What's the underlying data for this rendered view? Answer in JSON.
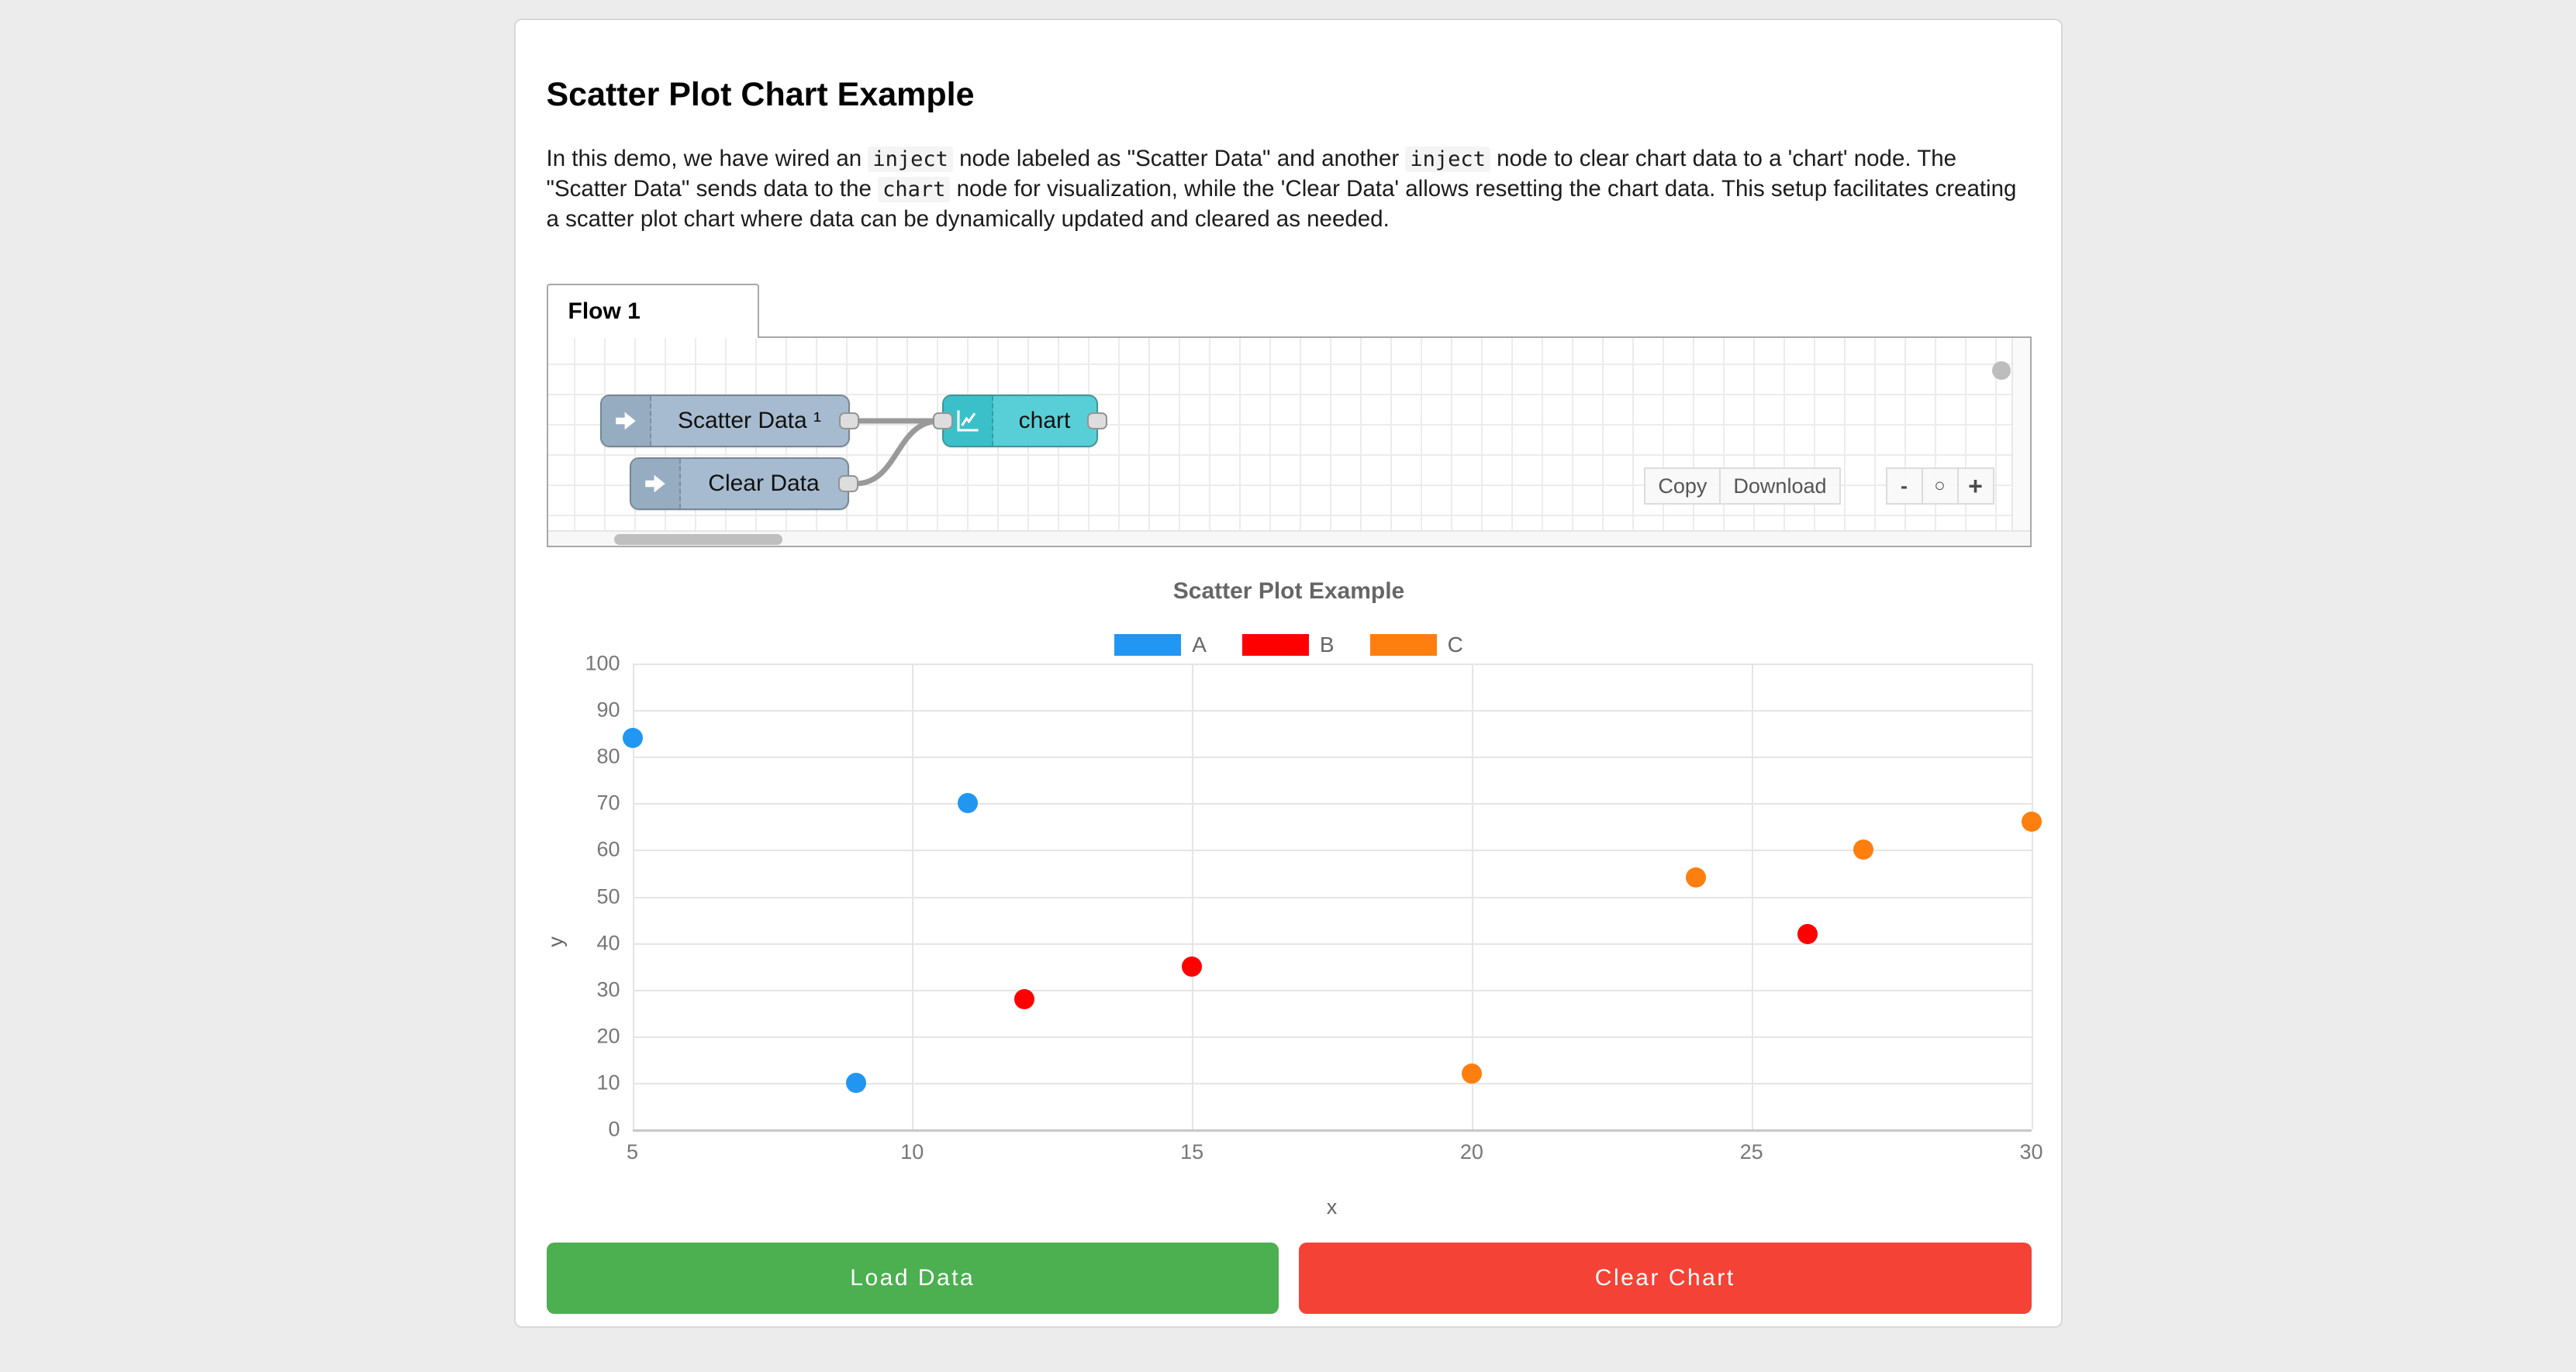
{
  "page": {
    "title": "Scatter Plot Chart Example"
  },
  "description": {
    "segments": [
      {
        "text": "In this demo, we have wired an "
      },
      {
        "text": "inject",
        "code": true
      },
      {
        "text": " node labeled as \"Scatter Data\" and another "
      },
      {
        "text": "inject",
        "code": true
      },
      {
        "text": " node to clear chart data to a 'chart' node. The \"Scatter Data\" sends data to the "
      },
      {
        "text": "chart",
        "code": true
      },
      {
        "text": " node for visualization, while the 'Clear Data' allows resetting the chart data. This setup facilitates creating a scatter plot chart where data can be dynamically updated and cleared as needed."
      }
    ]
  },
  "flow_editor": {
    "tab_label": "Flow 1",
    "nodes": [
      {
        "label": "Scatter Data ¹",
        "type": "inject",
        "color": "#A6BBCF",
        "icon_color": "#96ACC1"
      },
      {
        "label": "Clear Data",
        "type": "inject",
        "color": "#A6BBCF",
        "icon_color": "#96ACC1"
      },
      {
        "label": "chart",
        "type": "chart",
        "color": "#58CFD6",
        "icon_color": "#3BC0C9"
      }
    ],
    "toolbar": {
      "copy": "Copy",
      "download": "Download",
      "zoom_out": "-",
      "zoom_reset": "○",
      "zoom_in": "+"
    }
  },
  "chart_data": {
    "type": "scatter",
    "title": "Scatter Plot Example",
    "xlabel": "x",
    "ylabel": "y",
    "xlim": [
      5,
      30
    ],
    "ylim": [
      0,
      100
    ],
    "x_ticks": [
      5,
      10,
      15,
      20,
      25,
      30
    ],
    "y_ticks": [
      0,
      10,
      20,
      30,
      40,
      50,
      60,
      70,
      80,
      90,
      100
    ],
    "grid": true,
    "legend_position": "top",
    "series": [
      {
        "name": "A",
        "color": "#2196F3",
        "points": [
          [
            5,
            84
          ],
          [
            9,
            10
          ],
          [
            11,
            70
          ]
        ]
      },
      {
        "name": "B",
        "color": "#FF0000",
        "points": [
          [
            12,
            28
          ],
          [
            15,
            35
          ],
          [
            26,
            42
          ]
        ]
      },
      {
        "name": "C",
        "color": "#FF7F0E",
        "points": [
          [
            20,
            12
          ],
          [
            24,
            54
          ],
          [
            27,
            60
          ],
          [
            30,
            66
          ]
        ]
      }
    ]
  },
  "actions": {
    "load": "Load Data",
    "load_color": "#4CAF50",
    "clear": "Clear Chart",
    "clear_color": "#F44336"
  },
  "colors": {
    "page_bg": "#ECECEC",
    "card_bg": "#FFFFFF",
    "wire": "#999999",
    "chart_text": "#666666",
    "tick_text": "#777777"
  }
}
